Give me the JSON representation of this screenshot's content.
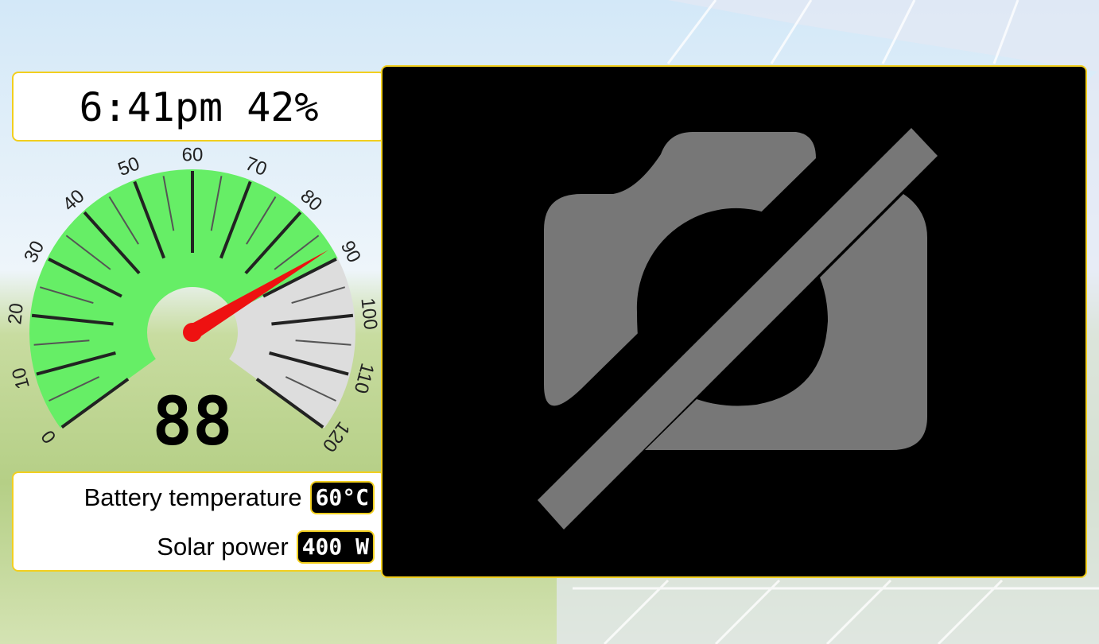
{
  "status": "6:41pm 42%",
  "gauge": {
    "min": 0,
    "max": 120,
    "value": 88,
    "ticks": [
      0,
      10,
      20,
      30,
      40,
      50,
      60,
      70,
      80,
      90,
      100,
      110,
      120
    ],
    "minor_ticks": [
      5,
      15,
      25,
      35,
      45,
      55,
      65,
      75,
      85,
      95,
      105,
      115
    ],
    "zones": [
      {
        "from": 0,
        "to": 90,
        "color": "#66ee66"
      },
      {
        "from": 90,
        "to": 120,
        "color": "#dddddd"
      }
    ],
    "needle_color": "#ee1111"
  },
  "readings": [
    {
      "label": "Battery temperature",
      "value": "60°C"
    },
    {
      "label": "Solar power",
      "value": "400 W"
    }
  ]
}
